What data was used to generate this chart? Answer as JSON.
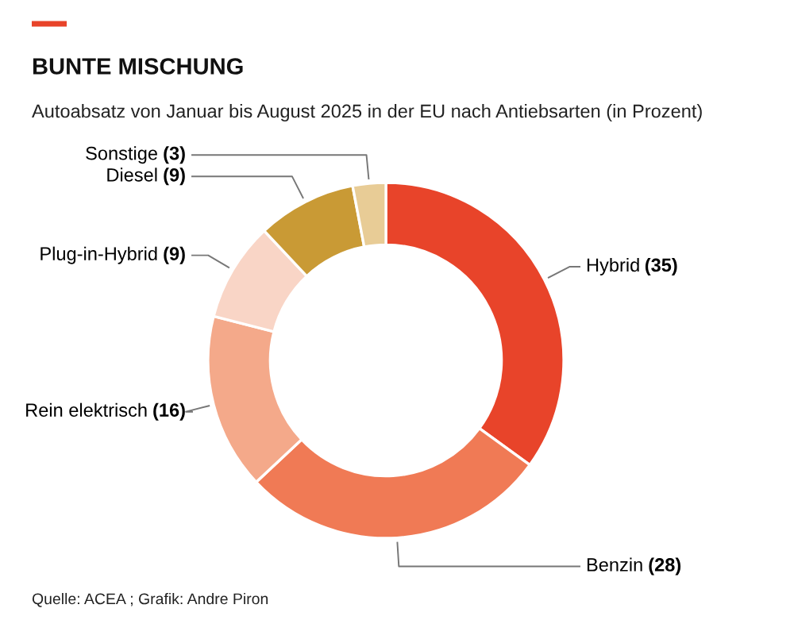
{
  "chart_data": {
    "type": "donut",
    "title": "BUNTE MISCHUNG",
    "subtitle": "Autoabsatz von Januar bis August 2025 in der EU nach Antiebsarten (in Prozent)",
    "categories": [
      "Hybrid",
      "Benzin",
      "Rein elektrisch",
      "Plug-in-Hybrid",
      "Diesel",
      "Sonstige"
    ],
    "values": [
      35,
      28,
      16,
      9,
      9,
      3
    ],
    "value_labels": [
      "(35)",
      "(28)",
      "(16)",
      "(9)",
      "(9)",
      "(3)"
    ],
    "colors": [
      "#e8442a",
      "#f07a55",
      "#f4a98a",
      "#f9d5c6",
      "#c99a35",
      "#e8cc96"
    ],
    "annotations": [
      "Quelle: ACEA ; Grafik: Andre Piron"
    ],
    "legend": false
  }
}
